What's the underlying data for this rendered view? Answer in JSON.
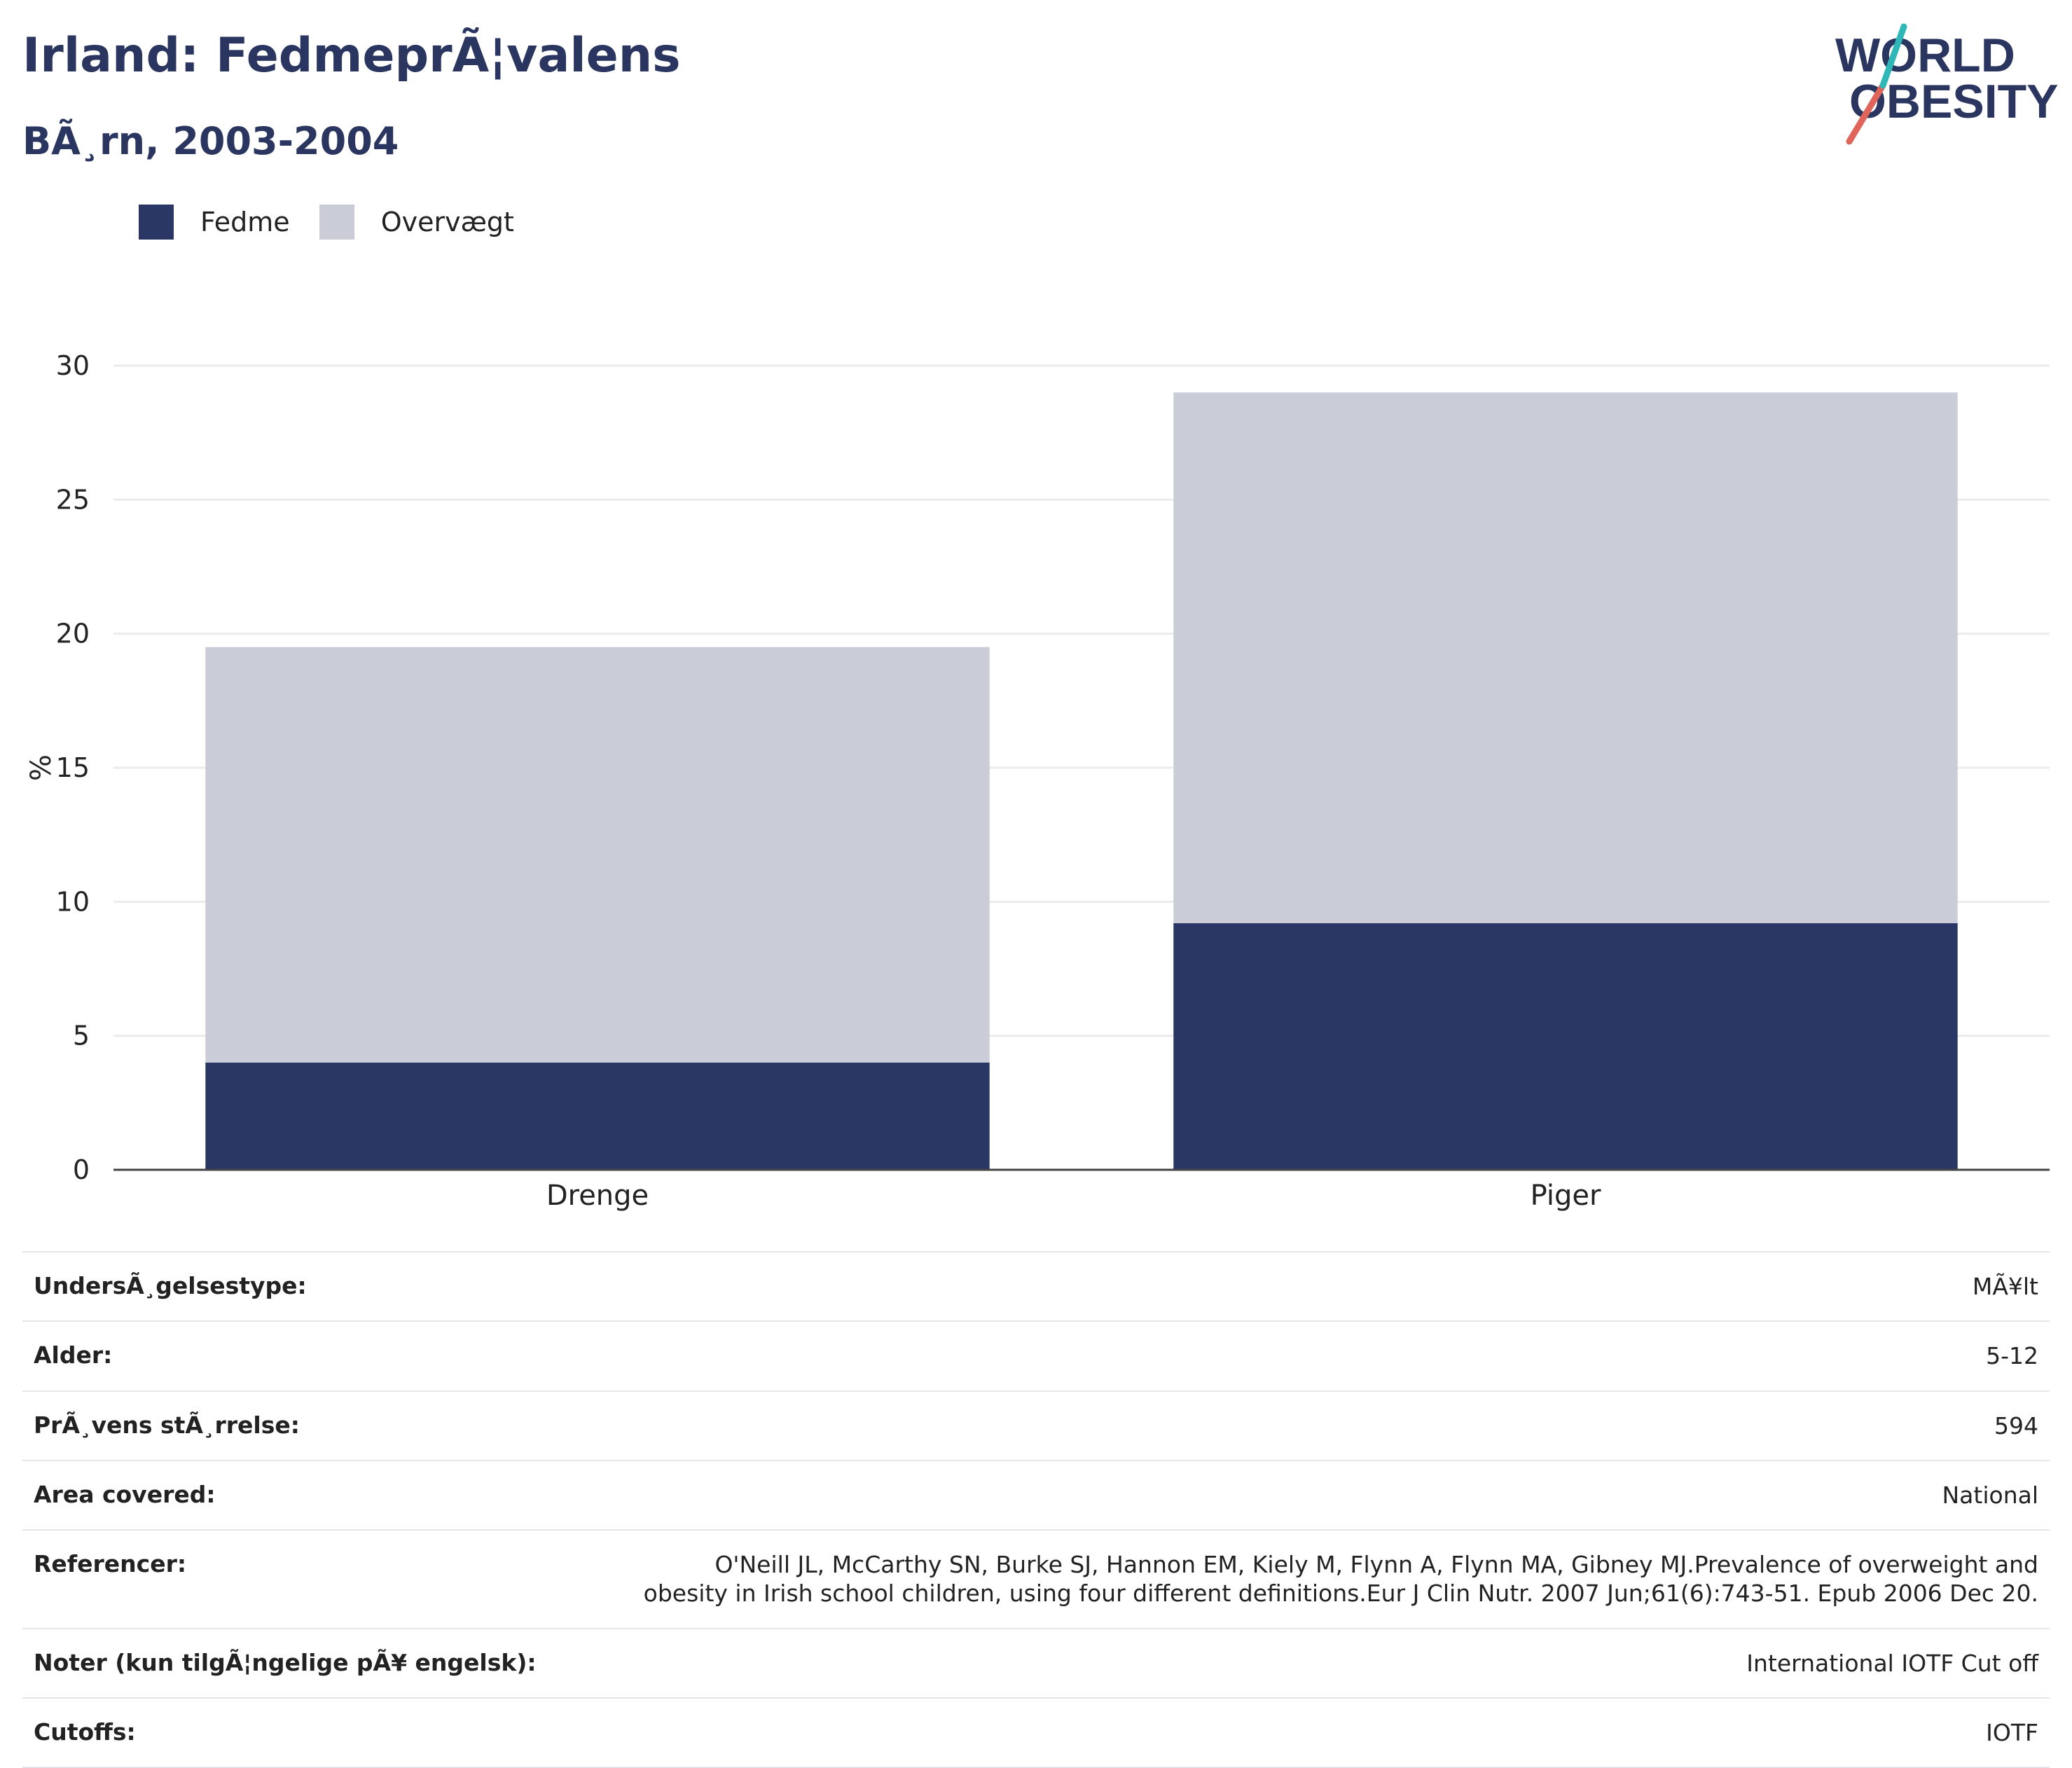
{
  "header": {
    "title": "Irland: FedmeprÃ¦valens",
    "subtitle": "BÃ¸rn, 2003-2004"
  },
  "logo": {
    "line1": "WORLD",
    "line2": "OBESITY"
  },
  "colors": {
    "fedme": "#2a3764",
    "overvaegt": "#cacdd8",
    "text": "#2a3560"
  },
  "chart_data": {
    "type": "bar",
    "stacked": true,
    "categories": [
      "Drenge",
      "Piger"
    ],
    "series": [
      {
        "name": "Fedme",
        "values": [
          4.0,
          9.2
        ]
      },
      {
        "name": "Overvægt",
        "values": [
          15.5,
          19.8
        ]
      }
    ],
    "ylabel": "%",
    "ylim": [
      0,
      30
    ],
    "yticks": [
      0,
      5,
      10,
      15,
      20,
      25,
      30
    ],
    "grid": true,
    "legend": "top-left"
  },
  "meta": [
    {
      "key": "UndersÃ¸gelsestype:",
      "value": "MÃ¥lt"
    },
    {
      "key": "Alder:",
      "value": "5-12"
    },
    {
      "key": "PrÃ¸vens stÃ¸rrelse:",
      "value": "594"
    },
    {
      "key": "Area covered:",
      "value": "National"
    },
    {
      "key": "Referencer:",
      "value": "O'Neill JL, McCarthy SN, Burke SJ, Hannon EM, Kiely M, Flynn A, Flynn MA, Gibney MJ.Prevalence of overweight and obesity in Irish school children, using four different definitions.Eur J Clin Nutr. 2007 Jun;61(6):743-51. Epub 2006 Dec 20."
    },
    {
      "key": "Noter (kun tilgÃ¦ngelige pÃ¥ engelsk):",
      "value": "International IOTF Cut off"
    },
    {
      "key": "Cutoffs:",
      "value": "IOTF"
    }
  ]
}
